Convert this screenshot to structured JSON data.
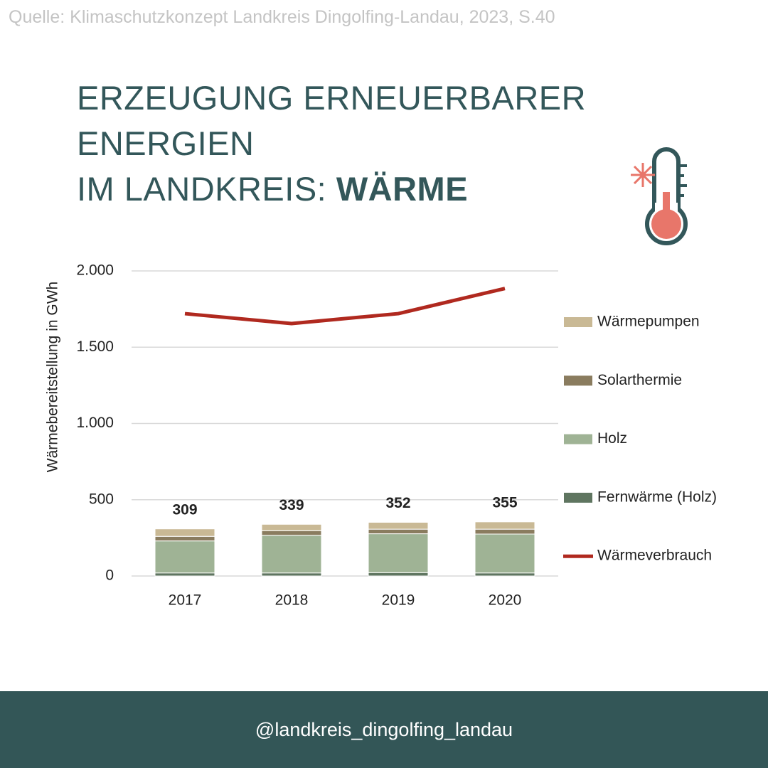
{
  "source": "Quelle: Klimaschutzkonzept Landkreis Dingolfing-Landau, 2023, S.40",
  "title": {
    "line1": "ERZEUGUNG ERNEUERBARER ENERGIEN",
    "line2": "IM LANDKREIS:",
    "highlight": "WÄRME"
  },
  "footer": "@landkreis_dingolfing_landau",
  "chart_data": {
    "type": "bar",
    "stacked": true,
    "y_label": "Wärmebereitstellung in GWh",
    "categories": [
      "2017",
      "2018",
      "2019",
      "2020"
    ],
    "series": [
      {
        "name": "Wärmepumpen",
        "color": "#c9b995",
        "values": [
          49,
          42,
          45,
          48
        ]
      },
      {
        "name": "Solarthermie",
        "color": "#8a7c5f",
        "values": [
          30,
          30,
          30,
          32
        ]
      },
      {
        "name": "Holz",
        "color": "#9fb395",
        "values": [
          210,
          247,
          255,
          255
        ]
      },
      {
        "name": "Fernwärme (Holz)",
        "color": "#5f7560",
        "values": [
          20,
          20,
          22,
          20
        ]
      },
      {
        "name": "Wärmeverbrauch",
        "type": "line",
        "color": "#b0291f",
        "values": [
          1720,
          1655,
          1720,
          1885
        ]
      }
    ],
    "totals": [
      309,
      339,
      352,
      355
    ],
    "ylim": [
      0,
      2000
    ],
    "yticks": [
      0,
      500,
      {
        "value": 1000,
        "label": "1.000"
      },
      {
        "value": 1500,
        "label": "1.500"
      },
      {
        "value": 2000,
        "label": "2.000"
      }
    ],
    "grid": true,
    "legend": "right"
  }
}
